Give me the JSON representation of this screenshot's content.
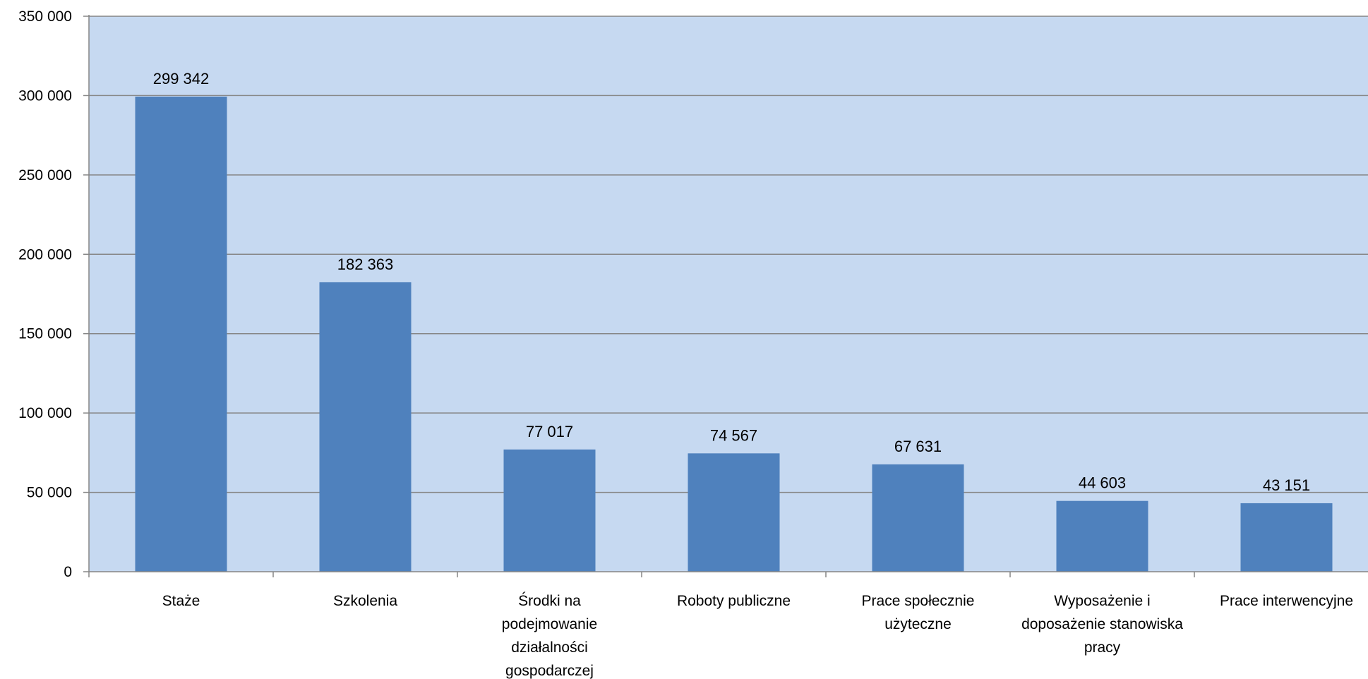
{
  "colors": {
    "plot_background": "#c6d9f1",
    "bar": "#4f81bd",
    "gridline": "#868686",
    "axis": "#868686",
    "text": "#000000"
  },
  "chart_data": {
    "type": "bar",
    "title": "",
    "xlabel": "",
    "ylabel": "",
    "categories": [
      "Staże",
      "Szkolenia",
      "Środki na podejmowanie działalności gospodarczej",
      "Roboty publiczne",
      "Prace społecznie użyteczne",
      "Wyposażenie i doposażenie stanowiska pracy",
      "Prace interwencyjne"
    ],
    "category_label_lines": [
      [
        "Staże"
      ],
      [
        "Szkolenia"
      ],
      [
        "Środki na",
        "podejmowanie",
        "działalności",
        "gospodarczej"
      ],
      [
        "Roboty publiczne"
      ],
      [
        "Prace społecznie",
        "użyteczne"
      ],
      [
        "Wyposażenie i",
        "doposażenie stanowiska",
        "pracy"
      ],
      [
        "Prace interwencyjne"
      ]
    ],
    "values": [
      299342,
      182363,
      77017,
      74567,
      67631,
      44603,
      43151
    ],
    "data_labels": [
      "299 342",
      "182 363",
      "77 017",
      "74 567",
      "67 631",
      "44 603",
      "43 151"
    ],
    "ylim": [
      0,
      350000
    ],
    "yticks": [
      0,
      50000,
      100000,
      150000,
      200000,
      250000,
      300000,
      350000
    ],
    "ytick_labels": [
      "0",
      "50 000",
      "100 000",
      "150 000",
      "200 000",
      "250 000",
      "300 000",
      "350 000"
    ],
    "grid": true,
    "legend": "none"
  }
}
